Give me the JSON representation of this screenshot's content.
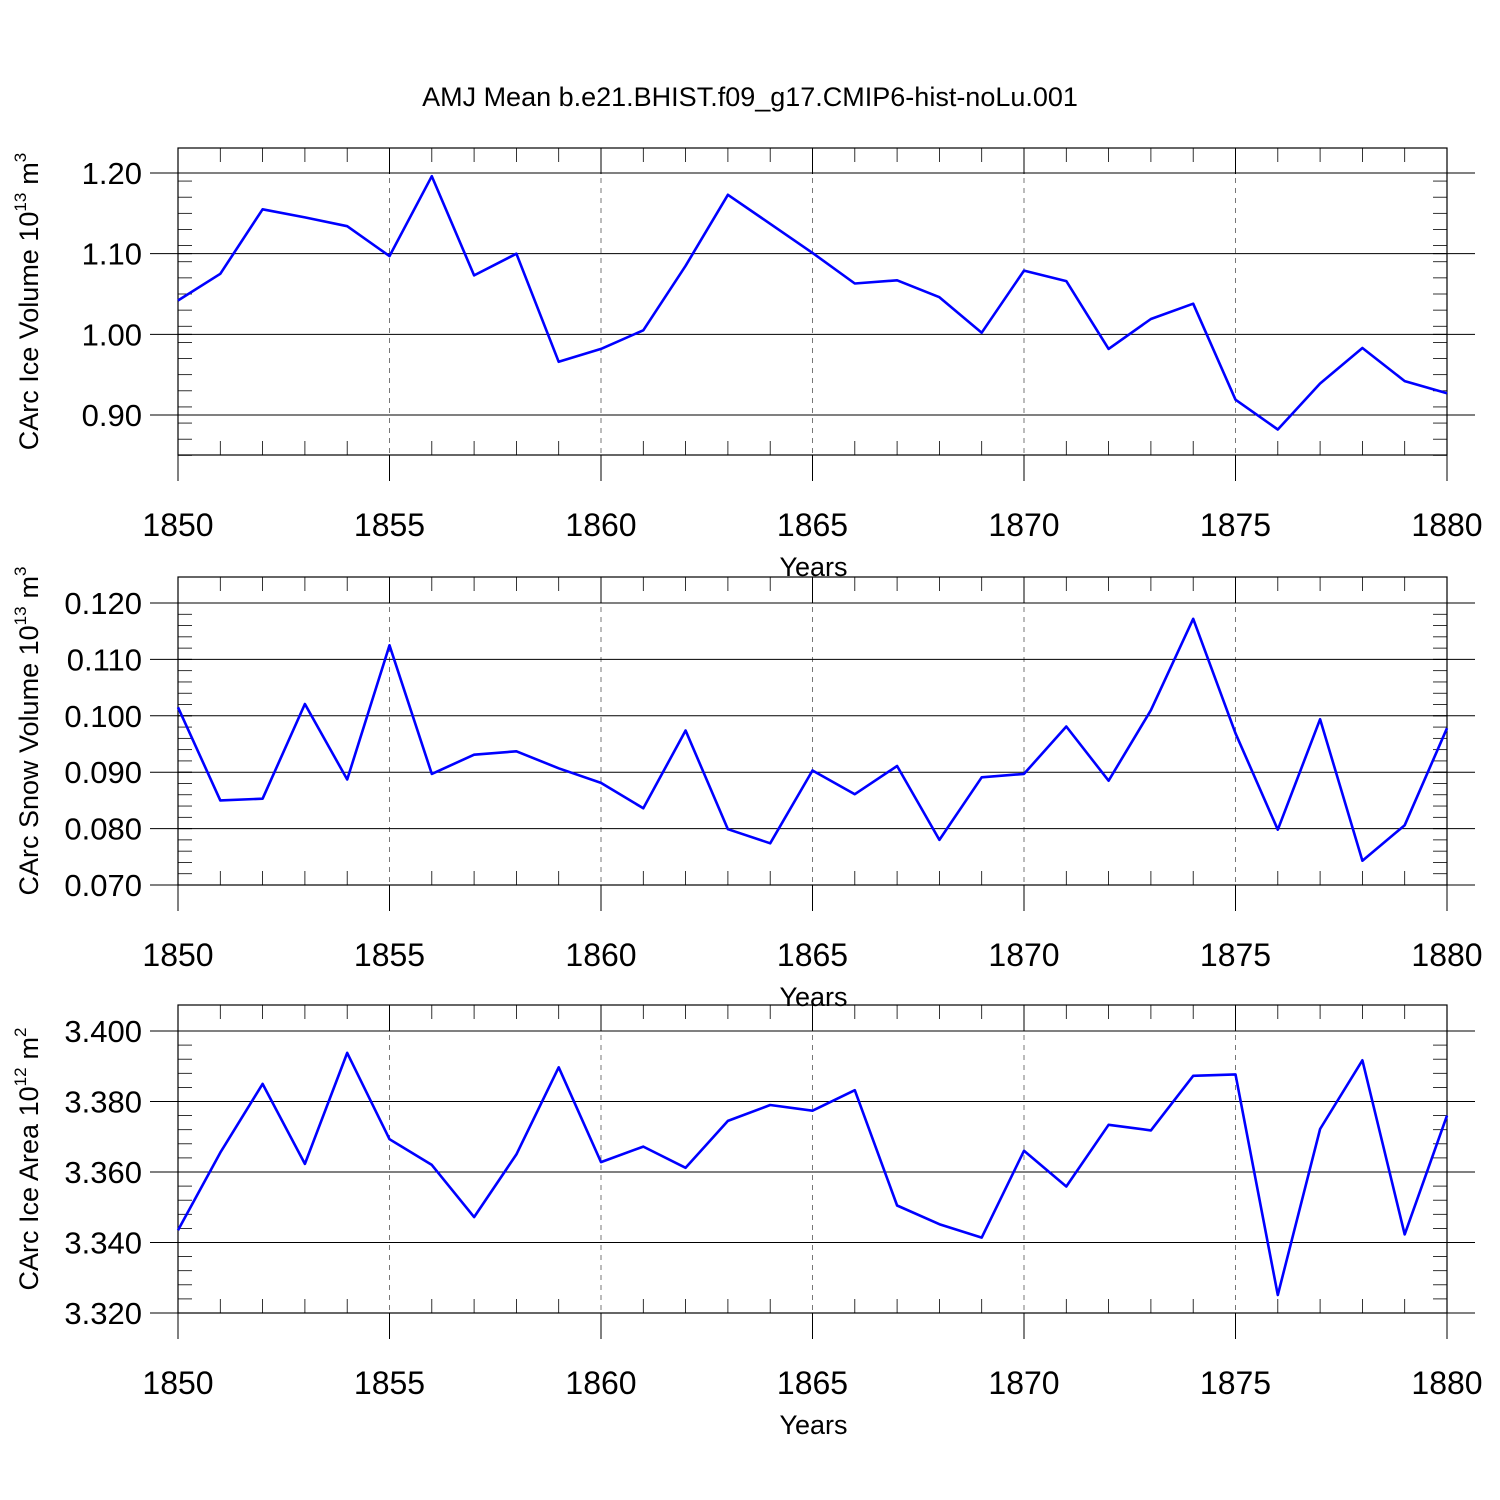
{
  "title": "AMJ Mean b.e21.BHIST.f09_g17.CMIP6-hist-noLu.001",
  "line_color": "#0000ff",
  "chart_data": [
    {
      "type": "line",
      "ylabel": "CArc Ice Volume 10",
      "ylabel_exp": "13",
      "ylabel_unit": "m",
      "ylabel_unit_exp": "3",
      "xlabel": "Years",
      "xlim": [
        1850,
        1880
      ],
      "ylim": [
        0.85,
        1.2
      ],
      "xticks": [
        "1850",
        "1855",
        "1860",
        "1865",
        "1870",
        "1875",
        "1880"
      ],
      "yticks": [
        "0.90",
        "1.00",
        "1.10",
        "1.20"
      ],
      "x": [
        1850,
        1851,
        1852,
        1853,
        1854,
        1855,
        1856,
        1857,
        1858,
        1859,
        1860,
        1861,
        1862,
        1863,
        1864,
        1865,
        1866,
        1867,
        1868,
        1869,
        1870,
        1871,
        1872,
        1873,
        1874,
        1875,
        1876,
        1877,
        1878,
        1879,
        1880
      ],
      "values": [
        1.042,
        1.075,
        1.155,
        1.145,
        1.134,
        1.097,
        1.196,
        1.073,
        1.1,
        0.966,
        0.982,
        1.005,
        1.085,
        1.173,
        1.137,
        1.101,
        1.063,
        1.067,
        1.046,
        1.002,
        1.079,
        1.066,
        0.982,
        1.019,
        1.038,
        0.919,
        0.882,
        0.939,
        0.983,
        0.942,
        0.927
      ]
    },
    {
      "type": "line",
      "ylabel": "CArc Snow Volume 10",
      "ylabel_exp": "13",
      "ylabel_unit": "m",
      "ylabel_unit_exp": "3",
      "xlabel": "Years",
      "xlim": [
        1850,
        1880
      ],
      "ylim": [
        0.07,
        0.12
      ],
      "xticks": [
        "1850",
        "1855",
        "1860",
        "1865",
        "1870",
        "1875",
        "1880"
      ],
      "yticks": [
        "0.070",
        "0.080",
        "0.090",
        "0.100",
        "0.110",
        "0.120"
      ],
      "x": [
        1850,
        1851,
        1852,
        1853,
        1854,
        1855,
        1856,
        1857,
        1858,
        1859,
        1860,
        1861,
        1862,
        1863,
        1864,
        1865,
        1866,
        1867,
        1868,
        1869,
        1870,
        1871,
        1872,
        1873,
        1874,
        1875,
        1876,
        1877,
        1878,
        1879,
        1880
      ],
      "values": [
        0.1015,
        0.085,
        0.0853,
        0.1021,
        0.0887,
        0.1125,
        0.0897,
        0.0931,
        0.0937,
        0.0907,
        0.0881,
        0.0836,
        0.0974,
        0.0799,
        0.0774,
        0.0903,
        0.0861,
        0.0911,
        0.078,
        0.0891,
        0.0897,
        0.0981,
        0.0885,
        0.101,
        0.1172,
        0.0969,
        0.0798,
        0.0994,
        0.0743,
        0.0806,
        0.0978
      ]
    },
    {
      "type": "line",
      "ylabel": "CArc Ice Area 10",
      "ylabel_exp": "12",
      "ylabel_unit": "m",
      "ylabel_unit_exp": "2",
      "xlabel": "Years",
      "xlim": [
        1850,
        1880
      ],
      "ylim": [
        3.32,
        3.4
      ],
      "xticks": [
        "1850",
        "1855",
        "1860",
        "1865",
        "1870",
        "1875",
        "1880"
      ],
      "yticks": [
        "3.320",
        "3.340",
        "3.360",
        "3.380",
        "3.400"
      ],
      "x": [
        1850,
        1851,
        1852,
        1853,
        1854,
        1855,
        1856,
        1857,
        1858,
        1859,
        1860,
        1861,
        1862,
        1863,
        1864,
        1865,
        1866,
        1867,
        1868,
        1869,
        1870,
        1871,
        1872,
        1873,
        1874,
        1875,
        1876,
        1877,
        1878,
        1879,
        1880
      ],
      "values": [
        3.3435,
        3.3655,
        3.385,
        3.3623,
        3.3938,
        3.3693,
        3.362,
        3.3472,
        3.365,
        3.3897,
        3.3628,
        3.3672,
        3.3612,
        3.3745,
        3.379,
        3.3774,
        3.3832,
        3.3505,
        3.3452,
        3.3414,
        3.366,
        3.3559,
        3.3734,
        3.3718,
        3.3873,
        3.3877,
        3.3251,
        3.3722,
        3.3917,
        3.3423,
        3.376
      ]
    }
  ]
}
